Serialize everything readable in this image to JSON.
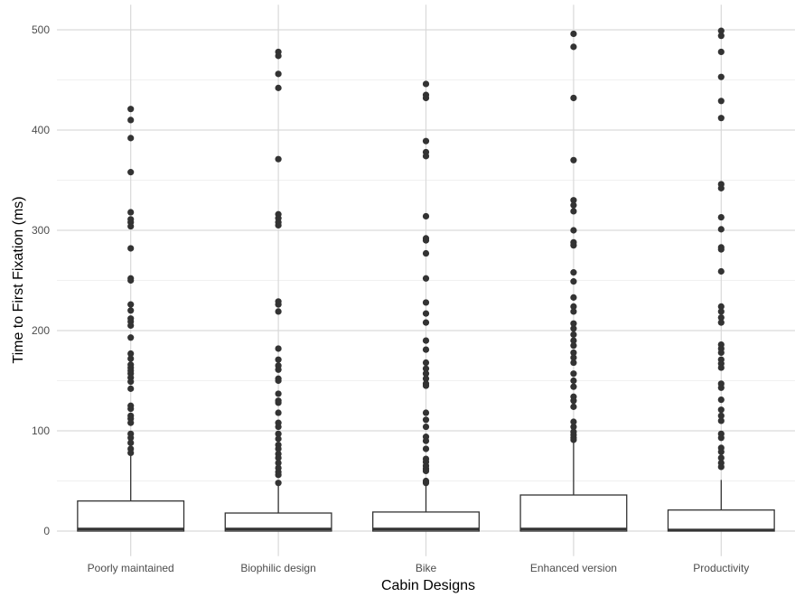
{
  "chart_data": {
    "type": "box",
    "xlabel": "Cabin Designs",
    "ylabel": "Time to First Fixation (ms)",
    "ylim": [
      -25,
      525
    ],
    "yticks": [
      0,
      100,
      200,
      300,
      400,
      500
    ],
    "grid": true,
    "colors": {
      "box_stroke": "#333333",
      "box_fill": "#ffffff",
      "outlier": "#333333",
      "grid_major": "#d9d9d9",
      "grid_minor": "#ebebeb"
    },
    "categories": [
      "Poorly maintained",
      "Biophilic design",
      "Bike",
      "Enhanced version",
      "Productivity"
    ],
    "boxes": [
      {
        "category": "Poorly maintained",
        "q1": 0,
        "median": 2,
        "q3": 30,
        "whisker_low": 0,
        "whisker_high": 75,
        "outliers": [
          421,
          410,
          392,
          358,
          318,
          311,
          308,
          304,
          282,
          252,
          250,
          226,
          220,
          212,
          209,
          205,
          193,
          177,
          172,
          166,
          163,
          160,
          157,
          153,
          149,
          142,
          125,
          122,
          115,
          112,
          108,
          97,
          93,
          88,
          82,
          78
        ]
      },
      {
        "category": "Biophilic design",
        "q1": 0,
        "median": 2,
        "q3": 18,
        "whisker_low": 0,
        "whisker_high": 47,
        "outliers": [
          478,
          474,
          456,
          442,
          371,
          316,
          312,
          308,
          305,
          229,
          226,
          219,
          182,
          171,
          165,
          161,
          152,
          150,
          137,
          130,
          128,
          118,
          108,
          104,
          97,
          92,
          86,
          82,
          77,
          73,
          68,
          63,
          59,
          56,
          48
        ]
      },
      {
        "category": "Bike",
        "q1": 0,
        "median": 2,
        "q3": 19,
        "whisker_low": 0,
        "whisker_high": 47,
        "outliers": [
          446,
          435,
          432,
          389,
          378,
          374,
          314,
          292,
          290,
          277,
          252,
          228,
          217,
          208,
          190,
          181,
          168,
          162,
          157,
          152,
          147,
          145,
          118,
          111,
          104,
          94,
          90,
          82,
          72,
          69,
          65,
          62,
          60,
          50,
          48
        ]
      },
      {
        "category": "Enhanced version",
        "q1": 0,
        "median": 2,
        "q3": 36,
        "whisker_low": 0,
        "whisker_high": 88,
        "outliers": [
          496,
          483,
          432,
          370,
          330,
          325,
          319,
          300,
          288,
          285,
          258,
          249,
          233,
          224,
          219,
          207,
          202,
          196,
          190,
          185,
          178,
          173,
          168,
          157,
          150,
          144,
          134,
          130,
          124,
          109,
          104,
          99,
          96,
          93,
          91
        ]
      },
      {
        "category": "Productivity",
        "q1": 0,
        "median": 1,
        "q3": 21,
        "whisker_low": 0,
        "whisker_high": 51,
        "outliers": [
          499,
          494,
          478,
          453,
          429,
          412,
          346,
          342,
          313,
          301,
          283,
          281,
          259,
          224,
          219,
          213,
          208,
          186,
          182,
          178,
          171,
          167,
          163,
          147,
          143,
          131,
          121,
          115,
          110,
          97,
          93,
          83,
          79,
          73,
          68,
          64
        ]
      }
    ]
  }
}
